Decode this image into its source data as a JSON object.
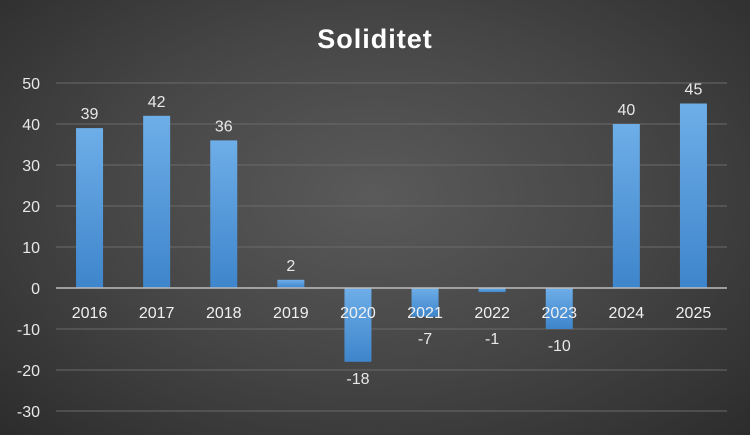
{
  "chart_data": {
    "type": "bar",
    "title": "Soliditet",
    "categories": [
      "2016",
      "2017",
      "2018",
      "2019",
      "2020",
      "2021",
      "2022",
      "2023",
      "2024",
      "2025"
    ],
    "values": [
      39,
      42,
      36,
      2,
      -18,
      -7,
      -1,
      -10,
      40,
      45
    ],
    "data_labels": [
      "39",
      "42",
      "36",
      "2",
      "-18",
      "-7",
      "-1",
      "-10",
      "40",
      "45"
    ],
    "ylim": [
      -30,
      50
    ],
    "yticks": [
      50,
      40,
      30,
      20,
      10,
      0,
      -10,
      -20,
      -30
    ],
    "grid": true,
    "legend": "none",
    "bar_color": "#5b9bd5"
  }
}
